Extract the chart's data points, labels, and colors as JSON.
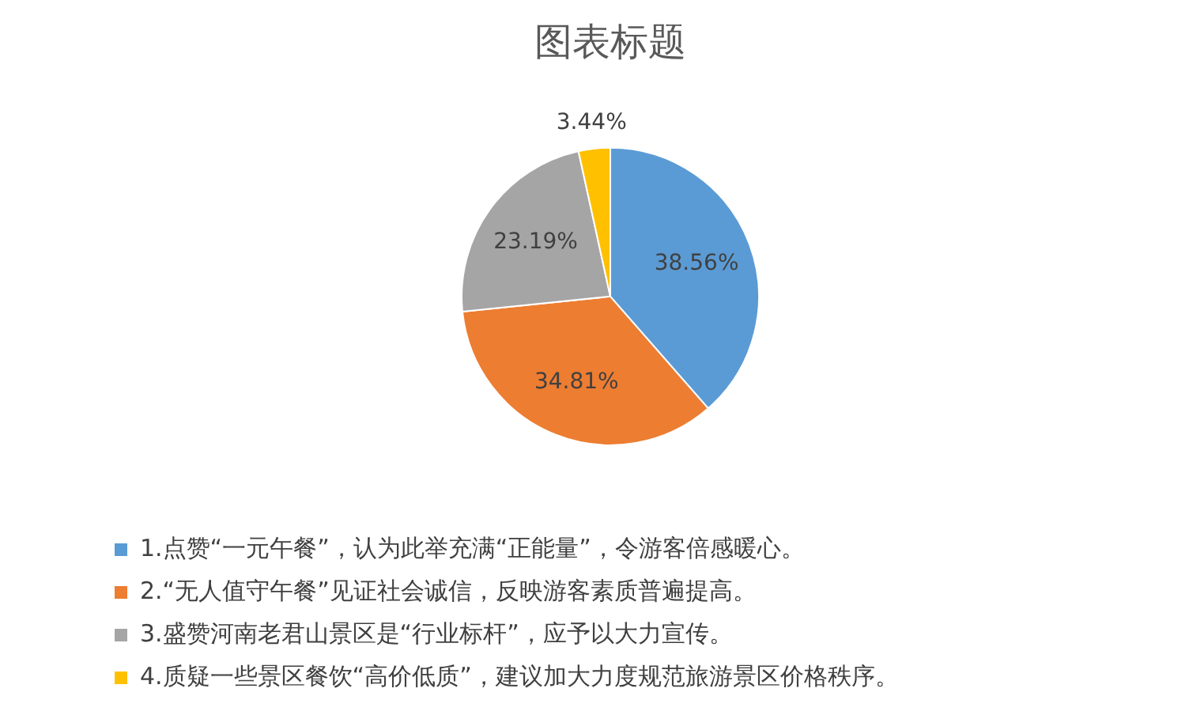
{
  "chart_data": {
    "type": "pie",
    "title": "图表标题",
    "categories": [
      "1.点赞“一元午餐”，认为此举充满“正能量”，令游客倍感暖心。",
      "2.“无人值守午餐”见证社会诚信，反映游客素质普遍提高。",
      "3.盛赞河南老君山景区是“行业标杆”，应予以大力宣传。",
      "4.质疑一些景区餐饮“高价低质”，建议加大力度规范旅游景区价格秩序。"
    ],
    "values": [
      38.56,
      34.81,
      23.19,
      3.44
    ],
    "colors": [
      "#5b9bd5",
      "#ed7d31",
      "#a5a5a5",
      "#ffc000"
    ],
    "value_labels": [
      "38.56%",
      "34.81%",
      "23.19%",
      "3.44%"
    ],
    "legend": "bottom"
  }
}
